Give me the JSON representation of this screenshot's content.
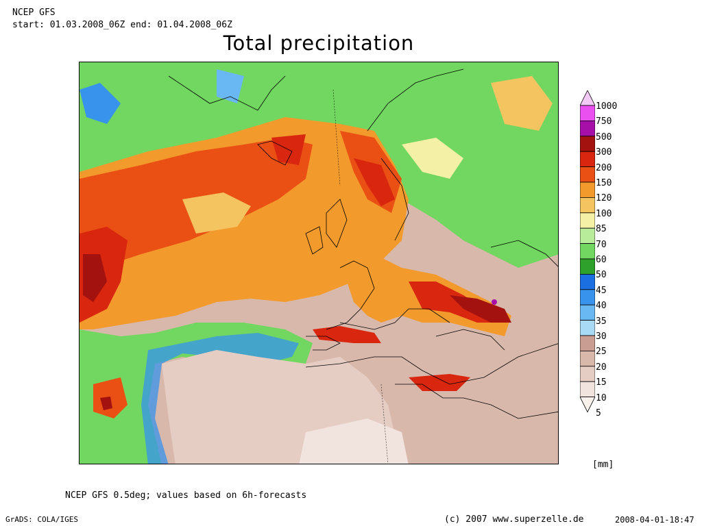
{
  "header": {
    "model": "NCEP GFS",
    "period": "start: 01.03.2008_06Z end: 01.04.2008_06Z"
  },
  "title": "Total precipitation",
  "legend": {
    "unit": "[mm]",
    "labels": [
      "1000",
      "750",
      "500",
      "300",
      "200",
      "150",
      "120",
      "100",
      "85",
      "70",
      "60",
      "50",
      "45",
      "40",
      "35",
      "30",
      "25",
      "20",
      "15",
      "10",
      "5"
    ],
    "colors": [
      "#f3c9f5",
      "#ea4ff0",
      "#a60fa8",
      "#a3120e",
      "#d9260f",
      "#ea4f14",
      "#f39a2c",
      "#f4c461",
      "#f4f0a6",
      "#b8ec9a",
      "#72d760",
      "#2ea02c",
      "#1c6fe0",
      "#3793ec",
      "#6ab8f3",
      "#a9daf5",
      "#c99d91",
      "#d9b8ac",
      "#e6cdc4",
      "#f1e3dd",
      "#f8f1ec"
    ]
  },
  "footer": {
    "note": "NCEP GFS 0.5deg; values based on 6h-forecasts",
    "grads": "GrADS: COLA/IGES",
    "copyright": "(c) 2007 www.superzelle.de",
    "timestamp": "2008-04-01-18:47"
  }
}
